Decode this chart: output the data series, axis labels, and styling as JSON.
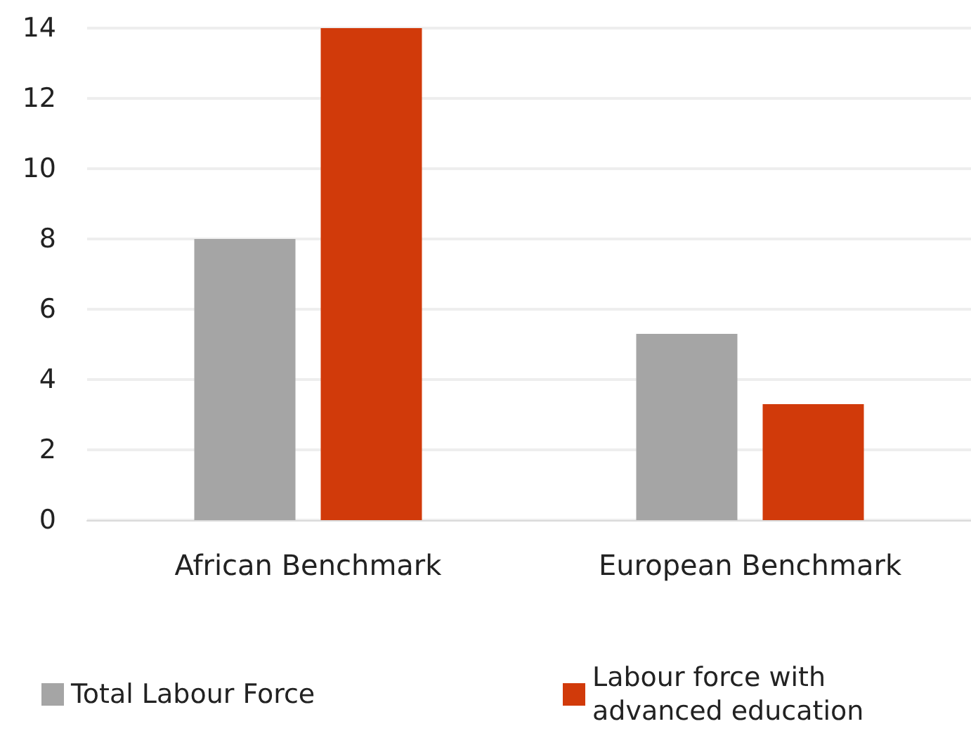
{
  "chart_data": {
    "type": "bar",
    "categories": [
      "African Benchmark",
      "European Benchmark"
    ],
    "series": [
      {
        "name": "Total Labour Force",
        "color": "#a5a5a5",
        "values": [
          8,
          5.3
        ]
      },
      {
        "name": "Labour force with advanced education",
        "color": "#d13a0a",
        "values": [
          14,
          3.3
        ]
      }
    ],
    "ylim": [
      0,
      14
    ],
    "yticks": [
      0,
      2,
      4,
      6,
      8,
      10,
      12,
      14
    ],
    "grid": "y",
    "legend": "bottom"
  }
}
